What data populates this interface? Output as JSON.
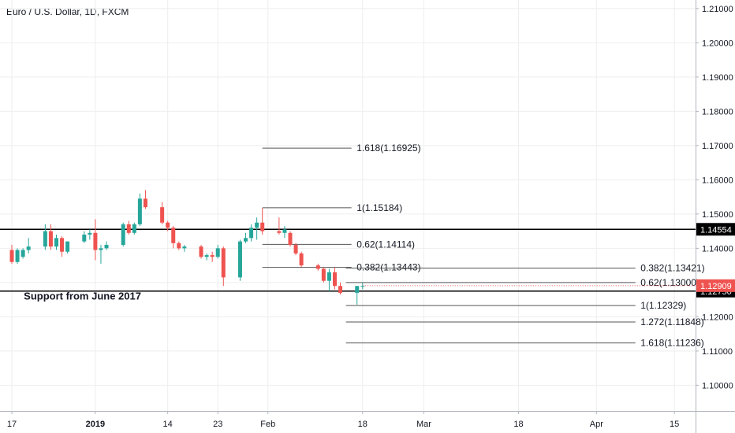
{
  "window": {
    "title": "Euro / U.S. Dollar, 1D, FXCM"
  },
  "colors": {
    "up": "#26a69a",
    "down": "#ef5350",
    "grid": "#eeeeee",
    "axis_text": "#131722",
    "fib_line": "#555555",
    "support_line": "#000000",
    "badge_dark": "#000000",
    "badge_red": "#ef5350"
  },
  "chart_data": {
    "type": "candlestick",
    "title": "Euro / U.S. Dollar, 1D, FXCM",
    "ylim": [
      1.0925,
      1.2125
    ],
    "y_ticks": [
      "1.10000",
      "1.11000",
      "1.12000",
      "1.13000",
      "1.14000",
      "1.15000",
      "1.16000",
      "1.17000",
      "1.18000",
      "1.19000",
      "1.20000",
      "1.21000"
    ],
    "x_ticks": [
      {
        "label": "17",
        "day": 0
      },
      {
        "label": "2019",
        "day": 15
      },
      {
        "label": "14",
        "day": 28
      },
      {
        "label": "23",
        "day": 37
      },
      {
        "label": "Feb",
        "day": 46
      },
      {
        "label": "18",
        "day": 63
      },
      {
        "label": "Mar",
        "day": 74
      },
      {
        "label": "18",
        "day": 91
      },
      {
        "label": "Apr",
        "day": 105
      },
      {
        "label": "15",
        "day": 119
      }
    ],
    "grid": true,
    "candles": [
      {
        "day": 0,
        "o": 1.1395,
        "h": 1.141,
        "l": 1.1355,
        "c": 1.136
      },
      {
        "day": 1,
        "o": 1.136,
        "h": 1.14,
        "l": 1.1355,
        "c": 1.1395
      },
      {
        "day": 2,
        "o": 1.1375,
        "h": 1.14,
        "l": 1.137,
        "c": 1.1395
      },
      {
        "day": 3,
        "o": 1.1395,
        "h": 1.143,
        "l": 1.1385,
        "c": 1.1405
      },
      {
        "day": 6,
        "o": 1.1405,
        "h": 1.147,
        "l": 1.1395,
        "c": 1.145
      },
      {
        "day": 7,
        "o": 1.145,
        "h": 1.147,
        "l": 1.1395,
        "c": 1.1405
      },
      {
        "day": 8,
        "o": 1.1405,
        "h": 1.144,
        "l": 1.1395,
        "c": 1.143
      },
      {
        "day": 9,
        "o": 1.143,
        "h": 1.1435,
        "l": 1.1375,
        "c": 1.139
      },
      {
        "day": 10,
        "o": 1.139,
        "h": 1.142,
        "l": 1.1385,
        "c": 1.142
      },
      {
        "day": 13,
        "o": 1.142,
        "h": 1.145,
        "l": 1.1415,
        "c": 1.144
      },
      {
        "day": 14,
        "o": 1.144,
        "h": 1.1455,
        "l": 1.1425,
        "c": 1.1445
      },
      {
        "day": 15,
        "o": 1.1445,
        "h": 1.1485,
        "l": 1.1365,
        "c": 1.1395
      },
      {
        "day": 16,
        "o": 1.1395,
        "h": 1.141,
        "l": 1.1355,
        "c": 1.14
      },
      {
        "day": 17,
        "o": 1.14,
        "h": 1.142,
        "l": 1.1395,
        "c": 1.141
      },
      {
        "day": 20,
        "o": 1.141,
        "h": 1.1475,
        "l": 1.1405,
        "c": 1.147
      },
      {
        "day": 21,
        "o": 1.147,
        "h": 1.148,
        "l": 1.144,
        "c": 1.1445
      },
      {
        "day": 22,
        "o": 1.1445,
        "h": 1.1475,
        "l": 1.144,
        "c": 1.147
      },
      {
        "day": 23,
        "o": 1.147,
        "h": 1.156,
        "l": 1.1465,
        "c": 1.1545
      },
      {
        "day": 24,
        "o": 1.1545,
        "h": 1.157,
        "l": 1.1515,
        "c": 1.152
      },
      {
        "day": 27,
        "o": 1.152,
        "h": 1.1535,
        "l": 1.147,
        "c": 1.1475
      },
      {
        "day": 28,
        "o": 1.1475,
        "h": 1.148,
        "l": 1.145,
        "c": 1.146
      },
      {
        "day": 29,
        "o": 1.146,
        "h": 1.1465,
        "l": 1.14,
        "c": 1.1415
      },
      {
        "day": 30,
        "o": 1.1415,
        "h": 1.142,
        "l": 1.1395,
        "c": 1.14
      },
      {
        "day": 31,
        "o": 1.14,
        "h": 1.141,
        "l": 1.139,
        "c": 1.1405
      },
      {
        "day": 34,
        "o": 1.1405,
        "h": 1.141,
        "l": 1.137,
        "c": 1.1375
      },
      {
        "day": 35,
        "o": 1.1375,
        "h": 1.1385,
        "l": 1.1365,
        "c": 1.138
      },
      {
        "day": 36,
        "o": 1.138,
        "h": 1.139,
        "l": 1.136,
        "c": 1.1375
      },
      {
        "day": 37,
        "o": 1.1375,
        "h": 1.141,
        "l": 1.137,
        "c": 1.14
      },
      {
        "day": 38,
        "o": 1.14,
        "h": 1.1405,
        "l": 1.129,
        "c": 1.1315
      },
      {
        "day": 41,
        "o": 1.1315,
        "h": 1.1425,
        "l": 1.1305,
        "c": 1.142
      },
      {
        "day": 42,
        "o": 1.142,
        "h": 1.1445,
        "l": 1.1415,
        "c": 1.143
      },
      {
        "day": 43,
        "o": 1.143,
        "h": 1.147,
        "l": 1.142,
        "c": 1.146
      },
      {
        "day": 44,
        "o": 1.146,
        "h": 1.149,
        "l": 1.1425,
        "c": 1.1475
      },
      {
        "day": 45,
        "o": 1.1475,
        "h": 1.1518,
        "l": 1.144,
        "c": 1.145
      },
      {
        "day": 48,
        "o": 1.145,
        "h": 1.149,
        "l": 1.144,
        "c": 1.1445
      },
      {
        "day": 49,
        "o": 1.1445,
        "h": 1.1465,
        "l": 1.143,
        "c": 1.1455
      },
      {
        "day": 50,
        "o": 1.1445,
        "h": 1.145,
        "l": 1.1405,
        "c": 1.141
      },
      {
        "day": 51,
        "o": 1.141,
        "h": 1.1415,
        "l": 1.138,
        "c": 1.1385
      },
      {
        "day": 52,
        "o": 1.1385,
        "h": 1.139,
        "l": 1.1345,
        "c": 1.135
      },
      {
        "day": 55,
        "o": 1.135,
        "h": 1.1355,
        "l": 1.1335,
        "c": 1.134
      },
      {
        "day": 56,
        "o": 1.134,
        "h": 1.1345,
        "l": 1.13,
        "c": 1.1305
      },
      {
        "day": 57,
        "o": 1.1305,
        "h": 1.134,
        "l": 1.1275,
        "c": 1.133
      },
      {
        "day": 58,
        "o": 1.133,
        "h": 1.1345,
        "l": 1.128,
        "c": 1.129
      },
      {
        "day": 59,
        "o": 1.129,
        "h": 1.13,
        "l": 1.1265,
        "c": 1.127
      },
      {
        "day": 62,
        "o": 1.127,
        "h": 1.128,
        "l": 1.1235,
        "c": 1.129
      },
      {
        "day": 63,
        "o": 1.129,
        "h": 1.13,
        "l": 1.128,
        "c": 1.129
      }
    ],
    "levels": [
      {
        "label": "1.618(1.16925)",
        "value": 1.16925,
        "x_from": 45,
        "x_to": 61,
        "text_day": 61.5
      },
      {
        "label": "1(1.15184)",
        "value": 1.15184,
        "x_from": 45,
        "x_to": 61,
        "text_day": 61.5
      },
      {
        "label": "0.62(1.14114)",
        "value": 1.14114,
        "x_from": 45,
        "x_to": 61,
        "text_day": 61.5
      },
      {
        "label": "0.382(1.13443)",
        "value": 1.13443,
        "x_from": 45,
        "x_to": 61,
        "text_day": 61.5
      },
      {
        "label": "0.382(1.13421)",
        "value": 1.13421,
        "x_from": 60,
        "x_to": 112,
        "text_day": 112.5
      },
      {
        "label": "0.62(1.13000)",
        "value": 1.13,
        "x_from": 60,
        "x_to": 112,
        "text_day": 112.5
      },
      {
        "label": "1(1.12329)",
        "value": 1.12329,
        "x_from": 60,
        "x_to": 112,
        "text_day": 112.5
      },
      {
        "label": "1.272(1.11848)",
        "value": 1.11848,
        "x_from": 60,
        "x_to": 112,
        "text_day": 112.5
      },
      {
        "label": "1.618(1.11236)",
        "value": 1.11236,
        "x_from": 60,
        "x_to": 112,
        "text_day": 112.5
      }
    ],
    "horizontal_lines": [
      {
        "value": 1.14554,
        "badge": "1.14554"
      },
      {
        "value": 1.1275,
        "badge": "1.12750"
      }
    ],
    "price_badge": {
      "value": 1.12909,
      "label": "1.12909"
    },
    "annotation": {
      "text": "Support from June 2017",
      "value": 1.12595,
      "day": 3
    }
  }
}
